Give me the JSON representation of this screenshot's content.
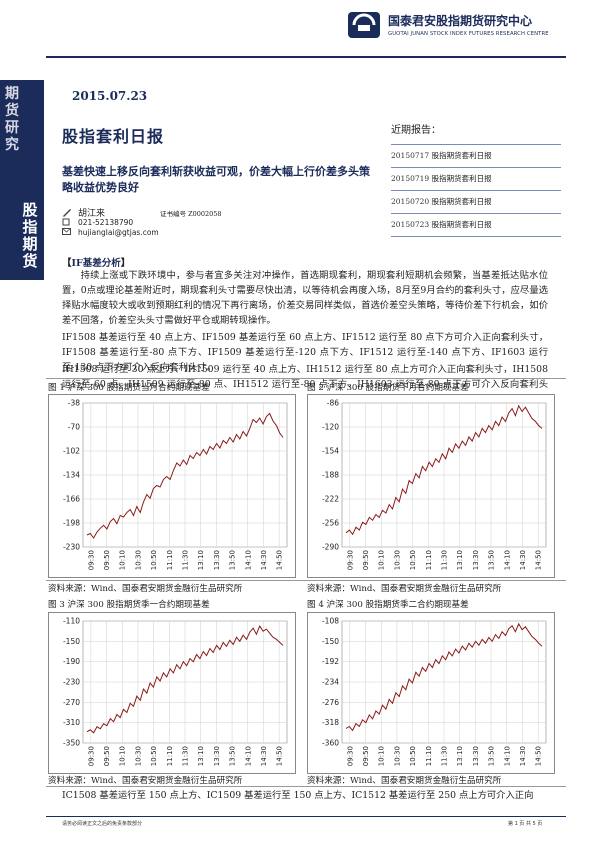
{
  "header": {
    "org_cn": "国泰君安股指期货研究中心",
    "org_en": "GUOTAI JUNAN STOCK INDEX FUTURES RESEARCH CENTRE",
    "brand_color": "#1b2b5a"
  },
  "band": {
    "top": "期货研究",
    "bottom": "股指期货"
  },
  "date": "2015.07.23",
  "title": "股指套利日报",
  "subtitle": "基差快速上移反向套利斩获收益可观，价差大幅上行价差多头策略收益优势良好",
  "author": {
    "name": "胡江来",
    "cert": "证书编号 Z0002058",
    "phone": "021-52138790",
    "email": "hujianglai@gtjas.com"
  },
  "recent": {
    "title": "近期报告：",
    "items": [
      {
        "date": "20150717",
        "name": "股指期货套利日报"
      },
      {
        "date": "20150719",
        "name": "股指期货套利日报"
      },
      {
        "date": "20150720",
        "name": "股指期货套利日报"
      },
      {
        "date": "20150723",
        "name": "股指期货套利日报"
      }
    ]
  },
  "section_heading": "IF基差分析",
  "paragraphs": {
    "p1": "持续上涨或下跌环境中，参与者宜多关注对冲操作，首选期现套利，期现套利短期机会频繁，当基差抵达贴水位置，0点或理论基差附近时，期现套利头寸需要尽快出清，以等待机会再度入场，8月至9月合约的套利头寸，应尽量选择贴水幅度较大或收到预期红利的情况下再行离场，价差交易同样类似，首选价差空头策略，等待价差下行机会，如价差不回落，价差空头头寸需做好平仓或期转现操作。",
    "p2": "IF1508 基差运行至 40 点上方、IF1509 基差运行至 60 点上方、IF1512 运行至 80 点下方可介入正向套利头寸，IF1508 基差运行至-80 点下方、IF1509 基差运行至-120 点下方、IF1512 运行至-140 点下方、IF1603 运行至-130 点下方可介入反向套利头寸。",
    "p3": "IH1508 运行至 30 点上方、IH1509 运行至 40 点上方、IH1512 运行至 80 点上方可介入正向套利头寸，IH1508 运行至-60 点、IH1509 运行至-80 点、IH1512 运行至-80 点下方、IH1603 运行至-80 点下方可介入反向套利头寸。",
    "p4": "IC1508 基差运行至 150 点上方、IC1509 基差运行至 150 点上方、IC1512 基差运行至 250 点上方可介入正向"
  },
  "figures": [
    {
      "caption": "图 1 沪深 300 股指期货当月合约期现基差",
      "source": "资料来源：Wind、国泰君安期货金融衍生品研究所"
    },
    {
      "caption": "图 2 沪深 300 股指期货下月合约期现基差",
      "source": "资料来源：Wind、国泰君安期货金融衍生品研究所"
    },
    {
      "caption": "图 3 沪深 300 股指期货季一合约期现基差",
      "source": "资料来源：Wind、国泰君安期货金融衍生品研究所"
    },
    {
      "caption": "图 4 沪深 300 股指期货季二合约期现基差",
      "source": "资料来源：Wind、国泰君安期货金融衍生品研究所"
    }
  ],
  "footer": {
    "left": "请务必阅读正文之后的免责条款部分",
    "right": "第 1 页 共 5 页"
  },
  "chart_data": [
    {
      "type": "line",
      "title": "图 1 沪深 300 股指期货当月合约期现基差",
      "xlabel": "",
      "ylabel": "",
      "x_ticks": [
        "09:30",
        "09:50",
        "10:10",
        "10:30",
        "10:50",
        "11:10",
        "11:30",
        "13:10",
        "13:30",
        "13:50",
        "14:10",
        "14:30",
        "14:50"
      ],
      "y_ticks": [
        -38,
        -70,
        -102,
        -134,
        -166,
        -198,
        -230
      ],
      "ylim": [
        -230,
        -38
      ],
      "grid": true,
      "series": [
        {
          "color": "#8b1a1a",
          "values": [
            -214,
            -212,
            -218,
            -210,
            -205,
            -201,
            -206,
            -196,
            -192,
            -199,
            -188,
            -190,
            -184,
            -180,
            -188,
            -176,
            -184,
            -170,
            -160,
            -165,
            -152,
            -148,
            -150,
            -140,
            -136,
            -140,
            -128,
            -118,
            -122,
            -114,
            -120,
            -108,
            -112,
            -104,
            -108,
            -100,
            -106,
            -96,
            -100,
            -92,
            -98,
            -88,
            -92,
            -84,
            -90,
            -80,
            -86,
            -76,
            -82,
            -72,
            -60,
            -64,
            -58,
            -66,
            -56,
            -52,
            -62,
            -68,
            -78,
            -84
          ]
        }
      ]
    },
    {
      "type": "line",
      "title": "图 2 沪深 300 股指期货下月合约期现基差",
      "xlabel": "",
      "ylabel": "",
      "x_ticks": [
        "09:30",
        "09:50",
        "10:10",
        "10:30",
        "10:50",
        "11:10",
        "11:30",
        "13:10",
        "13:30",
        "13:50",
        "14:10",
        "14:30",
        "14:50"
      ],
      "y_ticks": [
        -86,
        -120,
        -154,
        -188,
        -222,
        -256,
        -290
      ],
      "ylim": [
        -290,
        -86
      ],
      "grid": true,
      "series": [
        {
          "color": "#8b1a1a",
          "values": [
            -270,
            -266,
            -272,
            -262,
            -266,
            -255,
            -258,
            -248,
            -252,
            -244,
            -248,
            -238,
            -242,
            -230,
            -236,
            -220,
            -226,
            -208,
            -214,
            -196,
            -200,
            -186,
            -192,
            -176,
            -182,
            -170,
            -176,
            -165,
            -170,
            -158,
            -165,
            -150,
            -156,
            -144,
            -150,
            -140,
            -146,
            -134,
            -140,
            -128,
            -134,
            -122,
            -128,
            -118,
            -124,
            -112,
            -118,
            -106,
            -112,
            -100,
            -94,
            -104,
            -90,
            -98,
            -92,
            -100,
            -108,
            -112,
            -118,
            -122
          ]
        }
      ]
    },
    {
      "type": "line",
      "title": "图 3 沪深 300 股指期货季一合约期现基差",
      "xlabel": "",
      "ylabel": "",
      "x_ticks": [
        "09:30",
        "09:50",
        "10:10",
        "10:30",
        "10:50",
        "11:10",
        "11:30",
        "13:10",
        "13:30",
        "13:50",
        "14:10",
        "14:30",
        "14:50"
      ],
      "y_ticks": [
        -110,
        -150,
        -190,
        -230,
        -270,
        -310,
        -350
      ],
      "ylim": [
        -350,
        -110
      ],
      "grid": true,
      "series": [
        {
          "color": "#8b1a1a",
          "values": [
            -328,
            -324,
            -330,
            -318,
            -322,
            -312,
            -316,
            -302,
            -308,
            -294,
            -300,
            -284,
            -290,
            -272,
            -278,
            -258,
            -266,
            -244,
            -252,
            -232,
            -240,
            -220,
            -228,
            -212,
            -220,
            -204,
            -212,
            -196,
            -204,
            -190,
            -198,
            -184,
            -190,
            -176,
            -184,
            -170,
            -178,
            -164,
            -172,
            -158,
            -166,
            -152,
            -160,
            -148,
            -156,
            -142,
            -150,
            -138,
            -146,
            -132,
            -124,
            -136,
            -120,
            -130,
            -126,
            -134,
            -142,
            -146,
            -152,
            -158
          ]
        }
      ]
    },
    {
      "type": "line",
      "title": "图 4 沪深 300 股指期货季二合约期现基差",
      "xlabel": "",
      "ylabel": "",
      "x_ticks": [
        "09:30",
        "09:50",
        "10:10",
        "10:30",
        "10:50",
        "11:10",
        "11:30",
        "13:10",
        "13:30",
        "13:50",
        "14:10",
        "14:30",
        "14:50"
      ],
      "y_ticks": [
        -108,
        -150,
        -192,
        -234,
        -276,
        -318,
        -360
      ],
      "ylim": [
        -360,
        -108
      ],
      "grid": true,
      "series": [
        {
          "color": "#8b1a1a",
          "values": [
            -330,
            -326,
            -334,
            -320,
            -326,
            -312,
            -318,
            -302,
            -310,
            -294,
            -300,
            -282,
            -290,
            -270,
            -278,
            -256,
            -264,
            -242,
            -250,
            -228,
            -236,
            -214,
            -222,
            -204,
            -212,
            -196,
            -204,
            -188,
            -196,
            -180,
            -188,
            -172,
            -180,
            -166,
            -174,
            -160,
            -168,
            -154,
            -162,
            -150,
            -158,
            -146,
            -154,
            -142,
            -150,
            -136,
            -144,
            -130,
            -138,
            -124,
            -118,
            -130,
            -114,
            -126,
            -120,
            -130,
            -140,
            -146,
            -154,
            -160
          ]
        }
      ]
    }
  ]
}
